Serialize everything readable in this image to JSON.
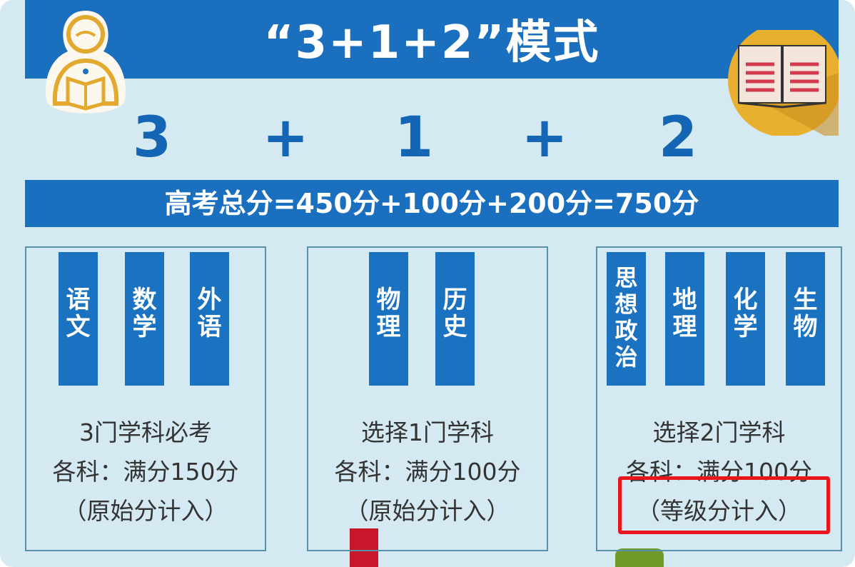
{
  "title": "“3+1+2”模式",
  "formula": [
    "3",
    "+",
    "1",
    "+",
    "2"
  ],
  "score_formula": "高考总分=450分+100分+200分=750分",
  "groups": [
    {
      "subjects": [
        "语文",
        "数学",
        "外语"
      ],
      "line1": "3门学科必考",
      "line2": "各科：满分150分",
      "line3": "（原始分计入）"
    },
    {
      "subjects": [
        "物理",
        "历史"
      ],
      "line1": "选择1门学科",
      "line2": "各科：满分100分",
      "line3": "（原始分计入）"
    },
    {
      "subjects": [
        "思想政治",
        "地理",
        "化学",
        "生物"
      ],
      "line1": "选择2门学科",
      "line2": "各科：满分100分",
      "line3": "（等级分计入）"
    }
  ],
  "icons": {
    "left": "reading-person-icon",
    "right": "open-book-icon"
  },
  "colors": {
    "primary_blue": "#1b6fbf",
    "background": "#d5e9f2",
    "highlight_red": "#e8151b",
    "icon_gold": "#e9b030"
  }
}
